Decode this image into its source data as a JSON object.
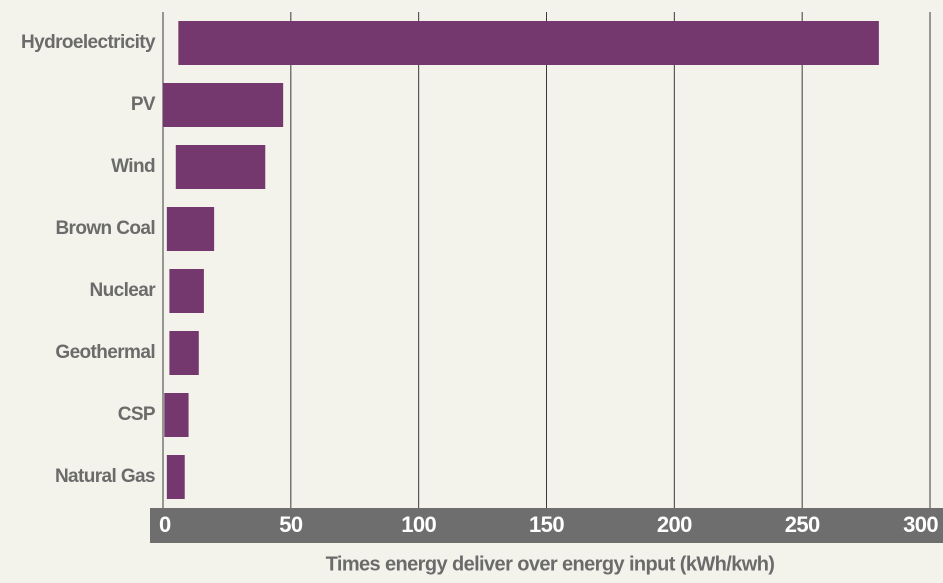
{
  "chart_data": {
    "type": "range-bar",
    "xlabel": "Times energy deliver over energy input (kWh/kwh)",
    "categories": [
      "Hydroelectricity",
      "PV",
      "Wind",
      "Brown Coal",
      "Nuclear",
      "Geothermal",
      "CSP",
      "Natural Gas"
    ],
    "ranges": [
      [
        6,
        280
      ],
      [
        0,
        47
      ],
      [
        5,
        40
      ],
      [
        1.5,
        20
      ],
      [
        2.5,
        16
      ],
      [
        2.5,
        14
      ],
      [
        0.5,
        10
      ],
      [
        1.5,
        8.5
      ]
    ],
    "color": "#74386f",
    "xlim": [
      0,
      300
    ],
    "xticks": [
      0,
      50,
      100,
      150,
      200,
      250,
      300
    ],
    "grid": true
  }
}
